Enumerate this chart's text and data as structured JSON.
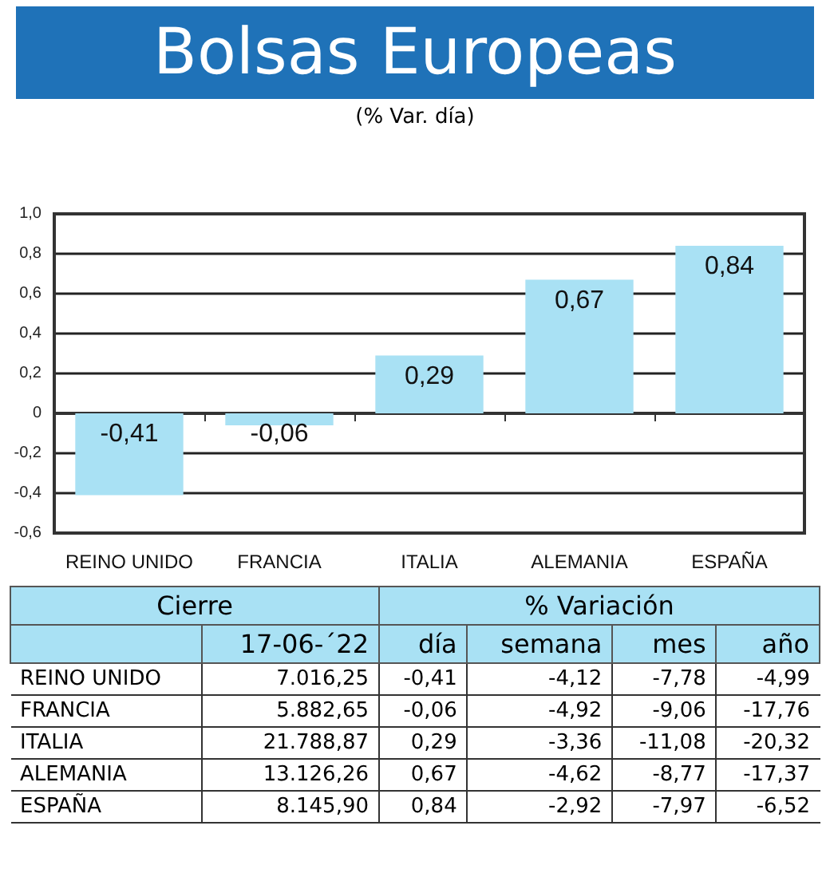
{
  "chart_data": [
    {
      "type": "bar",
      "title": "Bolsas Europeas",
      "subtitle": "(% Var. día)",
      "categories": [
        "REINO UNIDO",
        "FRANCIA",
        "ITALIA",
        "ALEMANIA",
        "ESPAÑA"
      ],
      "values": [
        -0.41,
        -0.06,
        0.29,
        0.67,
        0.84
      ],
      "color": "#a9e1f4",
      "ylim": [
        -0.6,
        1.0
      ],
      "yticks": [
        {
          "value": -0.6,
          "label": "-0,6"
        },
        {
          "value": -0.4,
          "label": "-0,4"
        },
        {
          "value": -0.2,
          "label": "-0,2"
        },
        0,
        {
          "value": 0.2,
          "label": "0,2"
        },
        {
          "value": 0.4,
          "label": "0,4"
        },
        {
          "value": 0.6,
          "label": "0,6"
        },
        {
          "value": 0.8,
          "label": "0,8"
        },
        {
          "value": 1.0,
          "label": "1,0"
        }
      ],
      "value_labels": [
        "-0,41",
        "-0,06",
        "0,29",
        "0,67",
        "0,84"
      ],
      "grid": "y"
    },
    {
      "type": "other",
      "annotations": [
        "Cierre",
        "% Variación"
      ],
      "categories": [
        "17-06-´22",
        "día",
        "semana",
        "mes",
        "año"
      ],
      "y_categories": [
        "REINO UNIDO",
        "FRANCIA",
        "ITALIA",
        "ALEMANIA",
        "ESPAÑA"
      ],
      "cell_labels": [
        [
          "7.016,25",
          "-0,41",
          "-4,12",
          "-7,78",
          "-4,99"
        ],
        [
          "5.882,65",
          "-0,06",
          "-4,92",
          "-9,06",
          "-17,76"
        ],
        [
          "21.788,87",
          "0,29",
          "-3,36",
          "-11,08",
          "-20,32"
        ],
        [
          "13.126,26",
          "0,67",
          "-4,62",
          "-8,77",
          "-17,37"
        ],
        [
          "8.145,90",
          "0,84",
          "-2,92",
          "-7,97",
          "-6,52"
        ]
      ]
    }
  ]
}
